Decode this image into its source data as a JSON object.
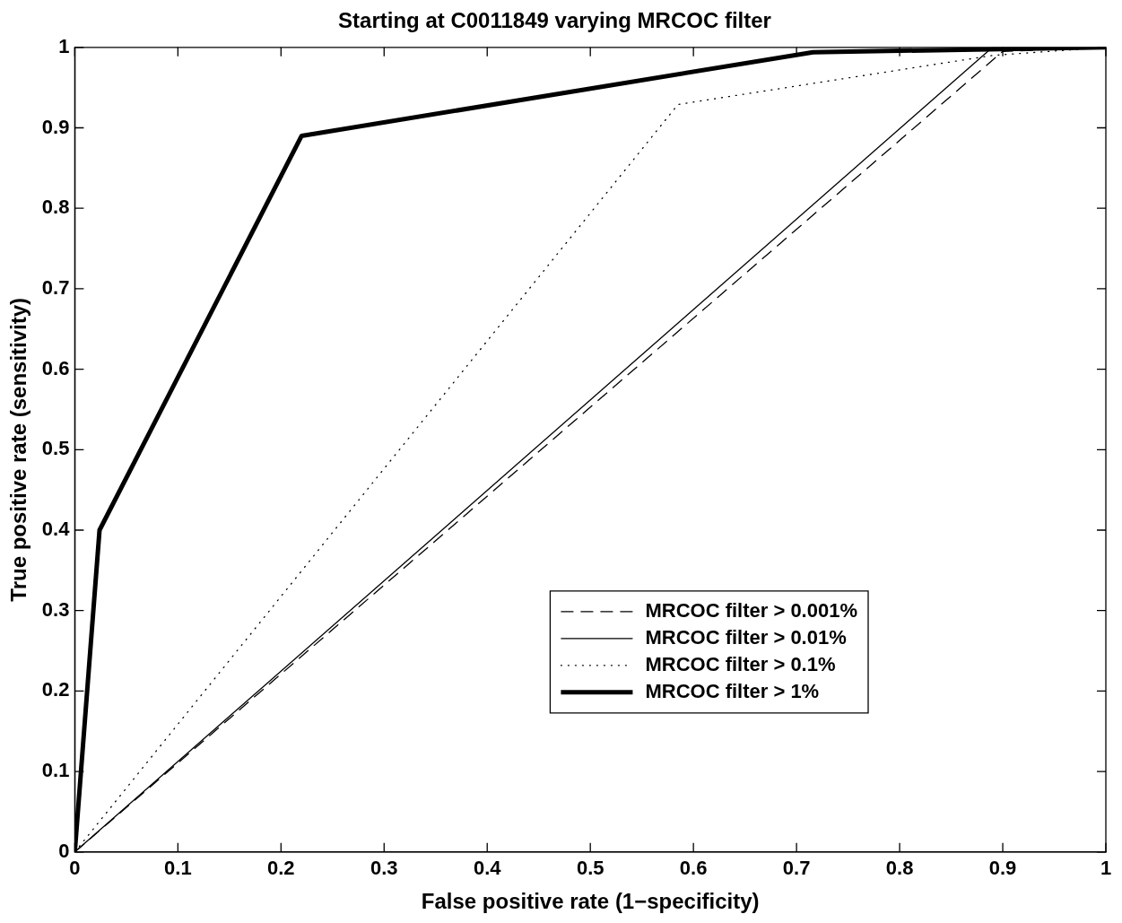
{
  "chart_data": {
    "type": "line",
    "title": "Starting at C0011849 varying MRCOC filter",
    "xlabel": "False positive rate (1−specificity)",
    "ylabel": "True positive rate (sensitivity)",
    "xlim": [
      0,
      1
    ],
    "ylim": [
      0,
      1
    ],
    "xticks": [
      0,
      0.1,
      0.2,
      0.3,
      0.4,
      0.5,
      0.6,
      0.7,
      0.8,
      0.9,
      1
    ],
    "yticks": [
      0,
      0.1,
      0.2,
      0.3,
      0.4,
      0.5,
      0.6,
      0.7,
      0.8,
      0.9,
      1
    ],
    "grid": false,
    "legend": "bottom right",
    "marker": "none",
    "series": [
      {
        "name": "MRCOC filter > 0.001%",
        "color": "#000000",
        "line_style": "dashed",
        "x": [
          0,
          0.9,
          1
        ],
        "values": [
          0,
          0.995,
          1
        ]
      },
      {
        "name": "MRCOC filter > 0.01%",
        "color": "#000000",
        "line_style": "solid",
        "x": [
          0,
          0.89,
          1
        ],
        "values": [
          0,
          1,
          1
        ]
      },
      {
        "name": "MRCOC filter > 0.1%",
        "color": "#000000",
        "line_style": "dotted",
        "x": [
          0,
          0.585,
          0.89,
          1
        ],
        "values": [
          0,
          0.929,
          0.99,
          1
        ]
      },
      {
        "name": "MRCOC filter > 1%",
        "color": "#000000",
        "line_style": "solid",
        "x": [
          0,
          0.024,
          0.22,
          0.716,
          1
        ],
        "values": [
          0,
          0.4,
          0.89,
          0.994,
          1
        ]
      }
    ]
  }
}
